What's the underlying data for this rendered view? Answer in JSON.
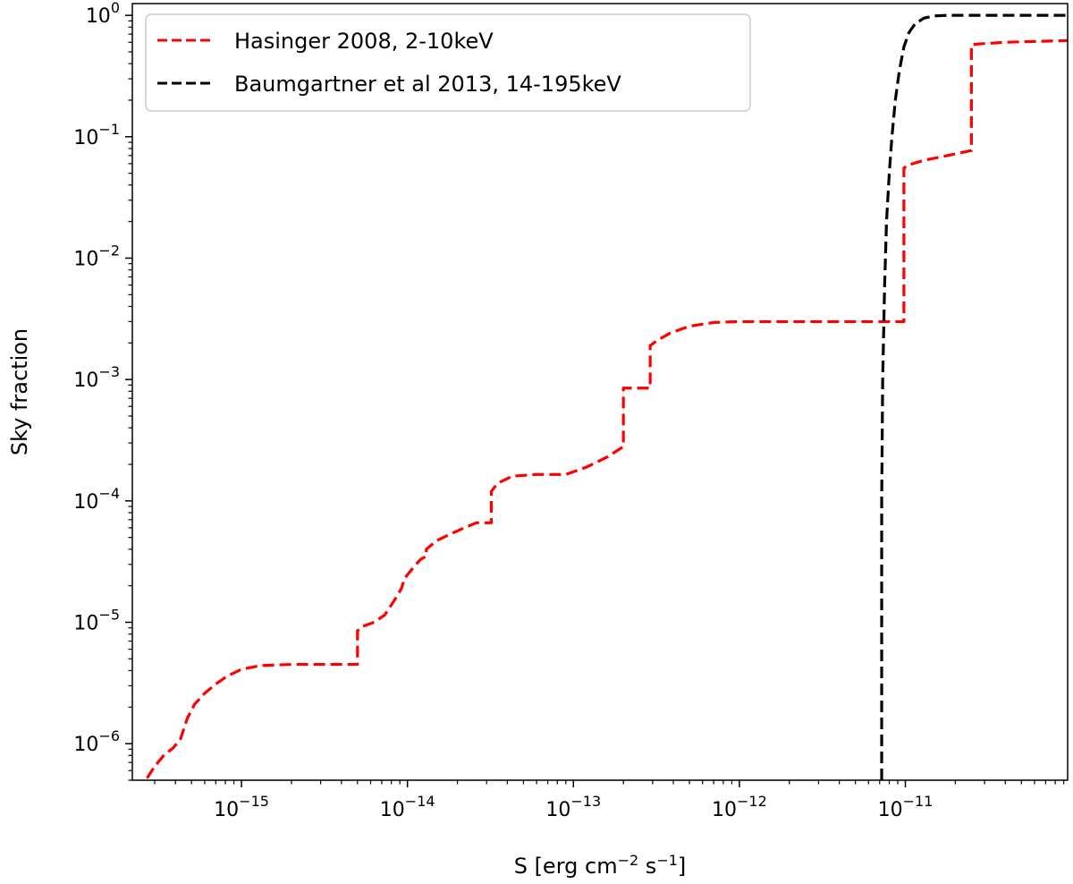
{
  "chart_data": {
    "type": "line",
    "xscale": "log",
    "yscale": "log",
    "xlim": [
      2.2e-16,
      9.5e-11
    ],
    "ylim": [
      5e-07,
      1.25
    ],
    "xlabel": {
      "base": "S [erg cm",
      "exp1": "−2",
      "mid": " s",
      "exp2": "−1",
      "end": "]"
    },
    "ylabel": "Sky fraction",
    "grid": false,
    "legend_position": "upper-left",
    "x_ticks": [
      {
        "value": 1e-15,
        "base": "10",
        "exp": "−15"
      },
      {
        "value": 1e-14,
        "base": "10",
        "exp": "−14"
      },
      {
        "value": 1e-13,
        "base": "10",
        "exp": "−13"
      },
      {
        "value": 1e-12,
        "base": "10",
        "exp": "−12"
      },
      {
        "value": 1e-11,
        "base": "10",
        "exp": "−11"
      }
    ],
    "y_ticks": [
      {
        "value": 1e-06,
        "base": "10",
        "exp": "−6"
      },
      {
        "value": 1e-05,
        "base": "10",
        "exp": "−5"
      },
      {
        "value": 0.0001,
        "base": "10",
        "exp": "−4"
      },
      {
        "value": 0.001,
        "base": "10",
        "exp": "−3"
      },
      {
        "value": 0.01,
        "base": "10",
        "exp": "−2"
      },
      {
        "value": 0.1,
        "base": "10",
        "exp": "−1"
      },
      {
        "value": 1,
        "base": "10",
        "exp": "0"
      }
    ],
    "series": [
      {
        "name": "Hasinger 2008, 2-10keV",
        "color": "#ff0000",
        "style": "dashed",
        "x": [
          2.7e-16,
          3e-16,
          3.4e-16,
          3.9e-16,
          4.3e-16,
          4.7e-16,
          5.2e-16,
          6e-16,
          7e-16,
          8.2e-16,
          1e-15,
          1.3e-15,
          2e-15,
          5e-15,
          5e-15,
          5.3e-15,
          6.3e-15,
          7.3e-15,
          8.3e-15,
          9.2e-15,
          9.6e-15,
          1.08e-14,
          1.2e-14,
          1.3e-14,
          1.3e-14,
          1.5e-14,
          1.8e-14,
          2.2e-14,
          2.6e-14,
          3.2e-14,
          3.2e-14,
          3.5e-14,
          4.3e-14,
          6e-14,
          9e-14,
          1.2e-13,
          1.6e-13,
          2e-13,
          2e-13,
          2.9e-13,
          2.9e-13,
          3.2e-13,
          3.8e-13,
          5e-13,
          7e-13,
          1e-12,
          2e-12,
          5e-12,
          9.8e-12,
          9.8e-12,
          1.02e-11,
          1.3e-11,
          1.8e-11,
          2.5e-11,
          2.5e-11,
          2.7e-11,
          4e-11,
          9.5e-11
        ],
        "y": [
          5.2e-07,
          6.5e-07,
          8e-07,
          9.3e-07,
          1.1e-06,
          1.6e-06,
          2.1e-06,
          2.6e-06,
          3.1e-06,
          3.6e-06,
          4.1e-06,
          4.4e-06,
          4.5e-06,
          4.5e-06,
          8.5e-06,
          9.2e-06,
          1e-05,
          1.15e-05,
          1.5e-05,
          1.9e-05,
          2.3e-05,
          2.8e-05,
          3.3e-05,
          3.5e-05,
          4e-05,
          4.7e-05,
          5.3e-05,
          6e-05,
          6.6e-05,
          6.6e-05,
          0.00012,
          0.00014,
          0.00016,
          0.000165,
          0.000165,
          0.00019,
          0.00023,
          0.00028,
          0.00085,
          0.00085,
          0.0019,
          0.0021,
          0.0024,
          0.00275,
          0.00295,
          0.003,
          0.003,
          0.003,
          0.003,
          0.055,
          0.058,
          0.064,
          0.07,
          0.077,
          0.57,
          0.58,
          0.6,
          0.62
        ]
      },
      {
        "name": "Baumgartner et al 2013, 14-195keV",
        "color": "#000000",
        "style": "dashed",
        "x": [
          7.2e-12,
          7.2e-12,
          7.3e-12,
          7.5e-12,
          7.7e-12,
          8e-12,
          8.3e-12,
          8.7e-12,
          9.2e-12,
          9.8e-12,
          1.05e-11,
          1.15e-11,
          1.3e-11,
          1.5e-11,
          1.8e-11,
          2.5e-11,
          4e-11,
          9.5e-11
        ],
        "y": [
          5e-07,
          0.0001,
          0.001,
          0.006,
          0.02,
          0.05,
          0.1,
          0.2,
          0.35,
          0.55,
          0.72,
          0.86,
          0.95,
          0.99,
          1.0,
          1.0,
          1.0,
          1.0
        ]
      }
    ]
  }
}
